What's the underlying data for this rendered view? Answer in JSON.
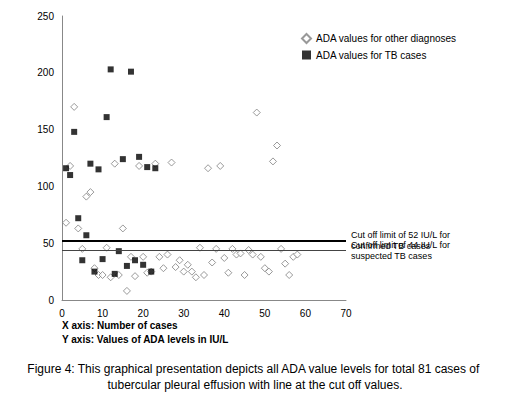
{
  "chart_data": {
    "type": "scatter",
    "caption": "Figure 4: This graphical presentation depicts all ADA value levels for total 81 cases of tubercular pleural effusion with line at the cut off values.",
    "xlabel": "X axis: Number of cases",
    "ylabel": "Y axis: Values of ADA levels in IU/L",
    "xlim": [
      0,
      70
    ],
    "xticks": [
      0,
      10,
      20,
      30,
      40,
      50,
      60,
      70
    ],
    "ylim": [
      0,
      250
    ],
    "yticks": [
      0,
      50,
      100,
      150,
      200,
      250
    ],
    "grid": false,
    "legend": "upper right",
    "series": [
      {
        "name": "ADA values for other diagnoses",
        "color": "#808080",
        "marker": "open diamond",
        "x": [
          1,
          2,
          3,
          4,
          5,
          6,
          7,
          8,
          9,
          10,
          11,
          12,
          13,
          14,
          15,
          16,
          17,
          18,
          19,
          20,
          21,
          22,
          23,
          24,
          25,
          26,
          27,
          28,
          29,
          30,
          31,
          32,
          33,
          34,
          35,
          36,
          37,
          38,
          39,
          40,
          41,
          42,
          43,
          44,
          45,
          46,
          47,
          48,
          49,
          50,
          51,
          52,
          53,
          54,
          55,
          56,
          57,
          58
        ],
        "values": [
          68,
          118,
          170,
          63,
          45,
          91,
          95,
          28,
          22,
          22,
          46,
          20,
          120,
          22,
          63,
          8,
          38,
          21,
          118,
          38,
          24,
          25,
          120,
          38,
          28,
          40,
          121,
          29,
          35,
          25,
          31,
          25,
          20,
          46,
          22,
          116,
          33,
          45,
          118,
          37,
          24,
          45,
          40,
          41,
          22,
          44,
          40,
          165,
          38,
          28,
          25,
          122,
          136,
          45,
          32,
          22,
          38,
          40
        ]
      },
      {
        "name": "ADA values for TB cases",
        "color": "#000000",
        "marker": "square",
        "x": [
          1,
          2,
          3,
          4,
          5,
          6,
          7,
          8,
          9,
          10,
          11,
          12,
          13,
          14,
          15,
          16,
          17,
          18,
          19,
          20,
          21,
          22,
          23
        ],
        "values": [
          116,
          110,
          148,
          72,
          35,
          57,
          120,
          25,
          115,
          36,
          161,
          203,
          23,
          43,
          124,
          30,
          201,
          35,
          126,
          31,
          117,
          25,
          116
        ]
      }
    ],
    "lines": [
      {
        "value": 52,
        "label": "Cut off limit of 52 IU/L for confirmed TB cases"
      },
      {
        "value": 44,
        "label": "Cut off limit of 44 IU/L for suspected TB cases"
      }
    ]
  }
}
